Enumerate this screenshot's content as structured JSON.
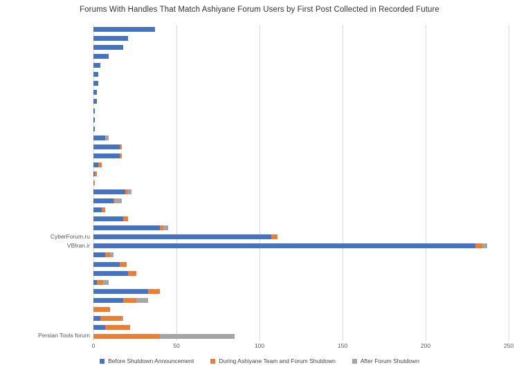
{
  "chart_data": {
    "type": "bar",
    "orientation": "horizontal-stacked",
    "title": "Forums With Handles That Match Ashiyane Forum Users by First Post Collected in Recorded Future",
    "xlabel": "",
    "ylabel": "",
    "x_ticks": [
      0,
      50,
      100,
      150,
      200,
      250
    ],
    "xlim": [
      0,
      250
    ],
    "grid": true,
    "legend_position": "bottom",
    "series": [
      {
        "name": "Before Shutdown Announcement",
        "color": "#4472C4"
      },
      {
        "name": "During Ashiyane Team and Forum Shutdown",
        "color": "#ED7D31"
      },
      {
        "name": "After Forum Shutdown",
        "color": "#A5A5A5"
      }
    ],
    "rows": [
      {
        "label": "",
        "values": [
          37,
          0,
          0
        ]
      },
      {
        "label": "",
        "values": [
          21,
          0,
          0
        ]
      },
      {
        "label": "",
        "values": [
          18,
          0,
          0
        ]
      },
      {
        "label": "",
        "values": [
          9,
          0,
          0
        ]
      },
      {
        "label": "",
        "values": [
          4,
          0,
          0
        ]
      },
      {
        "label": "",
        "values": [
          3,
          0,
          0
        ]
      },
      {
        "label": "",
        "values": [
          3,
          0,
          0
        ]
      },
      {
        "label": "",
        "values": [
          2,
          0,
          0
        ]
      },
      {
        "label": "",
        "values": [
          2,
          0,
          0
        ]
      },
      {
        "label": "",
        "values": [
          1,
          0,
          0
        ]
      },
      {
        "label": "",
        "values": [
          1,
          0,
          0
        ]
      },
      {
        "label": "",
        "values": [
          1,
          0,
          0
        ]
      },
      {
        "label": "",
        "values": [
          7,
          0,
          2
        ]
      },
      {
        "label": "",
        "values": [
          16,
          1,
          0
        ]
      },
      {
        "label": "",
        "values": [
          16,
          1,
          0
        ]
      },
      {
        "label": "",
        "values": [
          3,
          2,
          0
        ]
      },
      {
        "label": "",
        "values": [
          1,
          1,
          0
        ]
      },
      {
        "label": "",
        "values": [
          0,
          1,
          0
        ]
      },
      {
        "label": "",
        "values": [
          19,
          2,
          2
        ]
      },
      {
        "label": "",
        "values": [
          12,
          1,
          4
        ]
      },
      {
        "label": "",
        "values": [
          5,
          2,
          0
        ]
      },
      {
        "label": "",
        "values": [
          18,
          3,
          0
        ]
      },
      {
        "label": "",
        "values": [
          40,
          2,
          3
        ]
      },
      {
        "label": "CyberForum.ru",
        "values": [
          107,
          4,
          0
        ]
      },
      {
        "label": "VBIran.ir",
        "values": [
          230,
          4,
          3
        ]
      },
      {
        "label": "",
        "values": [
          7,
          3,
          2
        ]
      },
      {
        "label": "",
        "values": [
          16,
          4,
          0
        ]
      },
      {
        "label": "",
        "values": [
          21,
          5,
          0
        ]
      },
      {
        "label": "",
        "values": [
          2,
          4,
          3
        ]
      },
      {
        "label": "",
        "values": [
          33,
          7,
          0
        ]
      },
      {
        "label": "",
        "values": [
          18,
          8,
          7
        ]
      },
      {
        "label": "",
        "values": [
          0,
          10,
          0
        ]
      },
      {
        "label": "",
        "values": [
          4,
          13,
          1
        ]
      },
      {
        "label": "",
        "values": [
          7,
          15,
          0
        ]
      },
      {
        "label": "Persian Tools forum",
        "values": [
          0,
          40,
          45
        ]
      }
    ]
  },
  "colors": {
    "gridline": "#D9D9D9",
    "axis_text": "#595959",
    "title_text": "#333333",
    "background": "#FFFFFF"
  }
}
